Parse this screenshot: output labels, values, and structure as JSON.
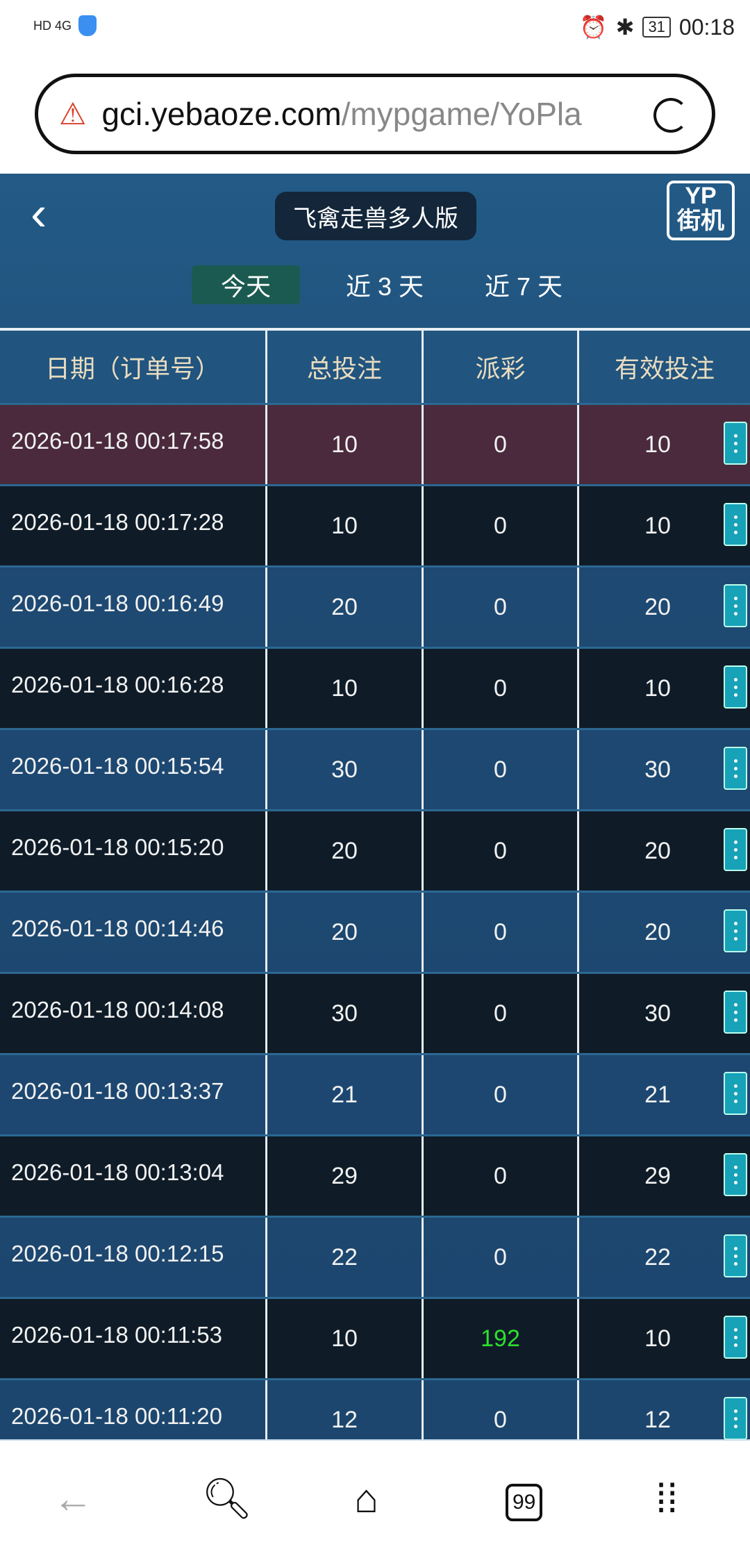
{
  "status_bar": {
    "left": "HD 4G",
    "battery": "31",
    "time": "00:18"
  },
  "browser": {
    "url_host": "gci.yebaoze.com",
    "url_path": "/mypgame/YoPla"
  },
  "app": {
    "title": "飞禽走兽多人版",
    "logo_top": "YP",
    "logo_bottom": "街机",
    "tabs": [
      {
        "label": "今天",
        "active": true
      },
      {
        "label": "近 3 天"
      },
      {
        "label": "近 7 天"
      }
    ],
    "columns": [
      "日期（订单号）",
      "总投注",
      "派彩",
      "有效投注"
    ],
    "rows": [
      {
        "date": "2026-01-18 00:17:58",
        "bet": "10",
        "payout": "0",
        "valid": "10"
      },
      {
        "date": "2026-01-18 00:17:28",
        "bet": "10",
        "payout": "0",
        "valid": "10"
      },
      {
        "date": "2026-01-18 00:16:49",
        "bet": "20",
        "payout": "0",
        "valid": "20"
      },
      {
        "date": "2026-01-18 00:16:28",
        "bet": "10",
        "payout": "0",
        "valid": "10"
      },
      {
        "date": "2026-01-18 00:15:54",
        "bet": "30",
        "payout": "0",
        "valid": "30"
      },
      {
        "date": "2026-01-18 00:15:20",
        "bet": "20",
        "payout": "0",
        "valid": "20"
      },
      {
        "date": "2026-01-18 00:14:46",
        "bet": "20",
        "payout": "0",
        "valid": "20"
      },
      {
        "date": "2026-01-18 00:14:08",
        "bet": "30",
        "payout": "0",
        "valid": "30"
      },
      {
        "date": "2026-01-18 00:13:37",
        "bet": "21",
        "payout": "0",
        "valid": "21"
      },
      {
        "date": "2026-01-18 00:13:04",
        "bet": "29",
        "payout": "0",
        "valid": "29"
      },
      {
        "date": "2026-01-18 00:12:15",
        "bet": "22",
        "payout": "0",
        "valid": "22"
      },
      {
        "date": "2026-01-18 00:11:53",
        "bet": "10",
        "payout": "192",
        "valid": "10"
      },
      {
        "date": "2026-01-18 00:11:20",
        "bet": "12",
        "payout": "0",
        "valid": "12"
      }
    ]
  },
  "nav": {
    "tab_count": "99"
  },
  "colors": {
    "win": "#2ee02e",
    "highlight_row": "#4a2a3c",
    "more_button": "#17a2b8"
  }
}
